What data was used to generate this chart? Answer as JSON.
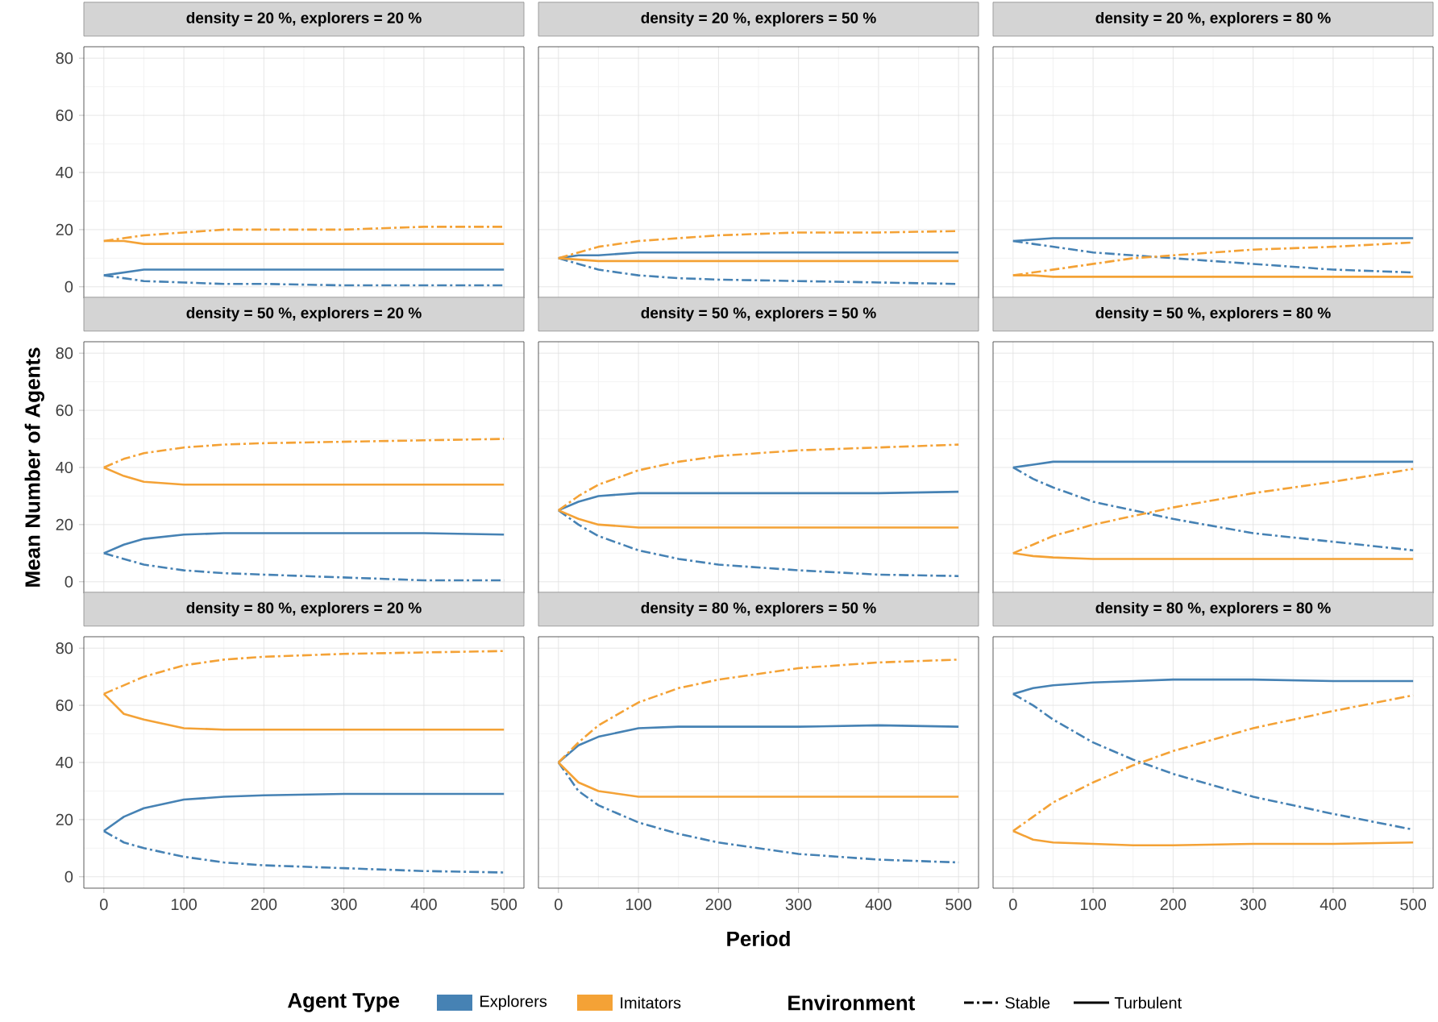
{
  "chart_data": [
    {
      "type": "line",
      "title": "density =  20 %, explorers =  20 %",
      "x": [
        0,
        25,
        50,
        100,
        150,
        200,
        300,
        400,
        500
      ],
      "xlim": [
        -25,
        525
      ],
      "ylim": [
        -4,
        84
      ],
      "xticks": [
        0,
        100,
        200,
        300,
        400,
        500
      ],
      "yticks": [
        0,
        20,
        40,
        60,
        80
      ],
      "grid": true,
      "tick_labels": "y",
      "series": [
        {
          "color": "#4682b4",
          "line_style": "dashed",
          "values": [
            4,
            3,
            2,
            1.5,
            1,
            1,
            0.5,
            0.5,
            0.5
          ]
        },
        {
          "color": "#4682b4",
          "line_style": "solid",
          "values": [
            4,
            5,
            6,
            6,
            6,
            6,
            6,
            6,
            6
          ]
        },
        {
          "color": "#f4a236",
          "line_style": "dashed",
          "values": [
            16,
            17,
            18,
            19,
            20,
            20,
            20,
            21,
            21
          ]
        },
        {
          "color": "#f4a236",
          "line_style": "solid",
          "values": [
            16,
            16,
            15,
            15,
            15,
            15,
            15,
            15,
            15
          ]
        }
      ]
    },
    {
      "type": "line",
      "title": "density =  20 %, explorers =  50 %",
      "x": [
        0,
        25,
        50,
        100,
        150,
        200,
        300,
        400,
        500
      ],
      "xlim": [
        -25,
        525
      ],
      "ylim": [
        -4,
        84
      ],
      "xticks": [
        0,
        100,
        200,
        300,
        400,
        500
      ],
      "yticks": [
        0,
        20,
        40,
        60,
        80
      ],
      "grid": true,
      "tick_labels": false,
      "series": [
        {
          "color": "#4682b4",
          "line_style": "dashed",
          "values": [
            10,
            8,
            6,
            4,
            3,
            2.5,
            2,
            1.5,
            1
          ]
        },
        {
          "color": "#4682b4",
          "line_style": "solid",
          "values": [
            10,
            11,
            11,
            12,
            12,
            12,
            12,
            12,
            12
          ]
        },
        {
          "color": "#f4a236",
          "line_style": "dashed",
          "values": [
            10,
            12,
            14,
            16,
            17,
            18,
            19,
            19,
            19.5
          ]
        },
        {
          "color": "#f4a236",
          "line_style": "solid",
          "values": [
            10,
            9.5,
            9,
            9,
            9,
            9,
            9,
            9,
            9
          ]
        }
      ]
    },
    {
      "type": "line",
      "title": "density =  20 %, explorers =  80 %",
      "x": [
        0,
        25,
        50,
        100,
        150,
        200,
        300,
        400,
        500
      ],
      "xlim": [
        -25,
        525
      ],
      "ylim": [
        -4,
        84
      ],
      "xticks": [
        0,
        100,
        200,
        300,
        400,
        500
      ],
      "yticks": [
        0,
        20,
        40,
        60,
        80
      ],
      "grid": true,
      "tick_labels": false,
      "series": [
        {
          "color": "#4682b4",
          "line_style": "dashed",
          "values": [
            16,
            15,
            14,
            12,
            11,
            10,
            8,
            6,
            5
          ]
        },
        {
          "color": "#4682b4",
          "line_style": "solid",
          "values": [
            16,
            16.5,
            17,
            17,
            17,
            17,
            17,
            17,
            17
          ]
        },
        {
          "color": "#f4a236",
          "line_style": "dashed",
          "values": [
            4,
            5,
            6,
            8,
            10,
            11,
            13,
            14,
            15.5
          ]
        },
        {
          "color": "#f4a236",
          "line_style": "solid",
          "values": [
            4,
            4,
            3.5,
            3.5,
            3.5,
            3.5,
            3.5,
            3.5,
            3.5
          ]
        }
      ]
    },
    {
      "type": "line",
      "title": "density =  50 %, explorers =  20 %",
      "ylabel": "Mean Number of Agents",
      "x": [
        0,
        25,
        50,
        100,
        150,
        200,
        300,
        400,
        500
      ],
      "xlim": [
        -25,
        525
      ],
      "ylim": [
        -4,
        84
      ],
      "xticks": [
        0,
        100,
        200,
        300,
        400,
        500
      ],
      "yticks": [
        0,
        20,
        40,
        60,
        80
      ],
      "grid": true,
      "tick_labels": "y",
      "series": [
        {
          "color": "#4682b4",
          "line_style": "dashed",
          "values": [
            10,
            8,
            6,
            4,
            3,
            2.5,
            1.5,
            0.5,
            0.5
          ]
        },
        {
          "color": "#4682b4",
          "line_style": "solid",
          "values": [
            10,
            13,
            15,
            16.5,
            17,
            17,
            17,
            17,
            16.5
          ]
        },
        {
          "color": "#f4a236",
          "line_style": "dashed",
          "values": [
            40,
            43,
            45,
            47,
            48,
            48.5,
            49,
            49.5,
            50
          ]
        },
        {
          "color": "#f4a236",
          "line_style": "solid",
          "values": [
            40,
            37,
            35,
            34,
            34,
            34,
            34,
            34,
            34
          ]
        }
      ]
    },
    {
      "type": "line",
      "title": "density =  50 %, explorers =  50 %",
      "x": [
        0,
        25,
        50,
        100,
        150,
        200,
        300,
        400,
        500
      ],
      "xlim": [
        -25,
        525
      ],
      "ylim": [
        -4,
        84
      ],
      "xticks": [
        0,
        100,
        200,
        300,
        400,
        500
      ],
      "yticks": [
        0,
        20,
        40,
        60,
        80
      ],
      "grid": true,
      "tick_labels": false,
      "series": [
        {
          "color": "#4682b4",
          "line_style": "dashed",
          "values": [
            25,
            20,
            16,
            11,
            8,
            6,
            4,
            2.5,
            2
          ]
        },
        {
          "color": "#4682b4",
          "line_style": "solid",
          "values": [
            25,
            28,
            30,
            31,
            31,
            31,
            31,
            31,
            31.5
          ]
        },
        {
          "color": "#f4a236",
          "line_style": "dashed",
          "values": [
            25,
            30,
            34,
            39,
            42,
            44,
            46,
            47,
            48
          ]
        },
        {
          "color": "#f4a236",
          "line_style": "solid",
          "values": [
            25,
            22,
            20,
            19,
            19,
            19,
            19,
            19,
            19
          ]
        }
      ]
    },
    {
      "type": "line",
      "title": "density =  50 %, explorers =  80 %",
      "x": [
        0,
        25,
        50,
        100,
        150,
        200,
        300,
        400,
        500
      ],
      "xlim": [
        -25,
        525
      ],
      "ylim": [
        -4,
        84
      ],
      "xticks": [
        0,
        100,
        200,
        300,
        400,
        500
      ],
      "yticks": [
        0,
        20,
        40,
        60,
        80
      ],
      "grid": true,
      "tick_labels": false,
      "series": [
        {
          "color": "#4682b4",
          "line_style": "dashed",
          "values": [
            40,
            36,
            33,
            28,
            25,
            22,
            17,
            14,
            11
          ]
        },
        {
          "color": "#4682b4",
          "line_style": "solid",
          "values": [
            40,
            41,
            42,
            42,
            42,
            42,
            42,
            42,
            42
          ]
        },
        {
          "color": "#f4a236",
          "line_style": "dashed",
          "values": [
            10,
            13,
            16,
            20,
            23,
            26,
            31,
            35,
            39.5
          ]
        },
        {
          "color": "#f4a236",
          "line_style": "solid",
          "values": [
            10,
            9,
            8.5,
            8,
            8,
            8,
            8,
            8,
            8
          ]
        }
      ]
    },
    {
      "type": "line",
      "title": "density =  80 %, explorers =  20 %",
      "x": [
        0,
        25,
        50,
        100,
        150,
        200,
        300,
        400,
        500
      ],
      "xlim": [
        -25,
        525
      ],
      "ylim": [
        -4,
        84
      ],
      "xticks": [
        0,
        100,
        200,
        300,
        400,
        500
      ],
      "yticks": [
        0,
        20,
        40,
        60,
        80
      ],
      "grid": true,
      "series": [
        {
          "color": "#4682b4",
          "line_style": "dashed",
          "values": [
            16,
            12,
            10,
            7,
            5,
            4,
            3,
            2,
            1.5
          ]
        },
        {
          "color": "#4682b4",
          "line_style": "solid",
          "values": [
            16,
            21,
            24,
            27,
            28,
            28.5,
            29,
            29,
            29
          ]
        },
        {
          "color": "#f4a236",
          "line_style": "dashed",
          "values": [
            64,
            67,
            70,
            74,
            76,
            77,
            78,
            78.5,
            79
          ]
        },
        {
          "color": "#f4a236",
          "line_style": "solid",
          "values": [
            64,
            57,
            55,
            52,
            51.5,
            51.5,
            51.5,
            51.5,
            51.5
          ]
        }
      ]
    },
    {
      "type": "line",
      "title": "density =  80 %, explorers =  50 %",
      "xlabel": "Period",
      "x": [
        0,
        25,
        50,
        100,
        150,
        200,
        300,
        400,
        500
      ],
      "xlim": [
        -25,
        525
      ],
      "ylim": [
        -4,
        84
      ],
      "xticks": [
        0,
        100,
        200,
        300,
        400,
        500
      ],
      "yticks": [
        0,
        20,
        40,
        60,
        80
      ],
      "grid": true,
      "tick_labels": "x",
      "series": [
        {
          "color": "#4682b4",
          "line_style": "dashed",
          "values": [
            40,
            30,
            25,
            19,
            15,
            12,
            8,
            6,
            5
          ]
        },
        {
          "color": "#4682b4",
          "line_style": "solid",
          "values": [
            40,
            46,
            49,
            52,
            52.5,
            52.5,
            52.5,
            53,
            52.5
          ]
        },
        {
          "color": "#f4a236",
          "line_style": "dashed",
          "values": [
            40,
            47,
            53,
            61,
            66,
            69,
            73,
            75,
            76
          ]
        },
        {
          "color": "#f4a236",
          "line_style": "solid",
          "values": [
            40,
            33,
            30,
            28,
            28,
            28,
            28,
            28,
            28
          ]
        }
      ]
    },
    {
      "type": "line",
      "title": "density =  80 %, explorers =  80 %",
      "x": [
        0,
        25,
        50,
        100,
        150,
        200,
        300,
        400,
        500
      ],
      "xlim": [
        -25,
        525
      ],
      "ylim": [
        -4,
        84
      ],
      "xticks": [
        0,
        100,
        200,
        300,
        400,
        500
      ],
      "yticks": [
        0,
        20,
        40,
        60,
        80
      ],
      "grid": true,
      "tick_labels": "x",
      "series": [
        {
          "color": "#4682b4",
          "line_style": "dashed",
          "values": [
            64,
            60,
            55,
            47,
            41,
            36,
            28,
            22,
            16.5
          ]
        },
        {
          "color": "#4682b4",
          "line_style": "solid",
          "values": [
            64,
            66,
            67,
            68,
            68.5,
            69,
            69,
            68.5,
            68.5
          ]
        },
        {
          "color": "#f4a236",
          "line_style": "dashed",
          "values": [
            16,
            21,
            26,
            33,
            39,
            44,
            52,
            58,
            63.5
          ]
        },
        {
          "color": "#f4a236",
          "line_style": "solid",
          "values": [
            16,
            13,
            12,
            11.5,
            11,
            11,
            11.5,
            11.5,
            12
          ]
        }
      ]
    },
    {
      "type": "other",
      "annotations": [
        "Agent Type",
        "Explorers",
        "Imitators",
        "Environment",
        "Stable",
        "Turbulent"
      ]
    }
  ]
}
